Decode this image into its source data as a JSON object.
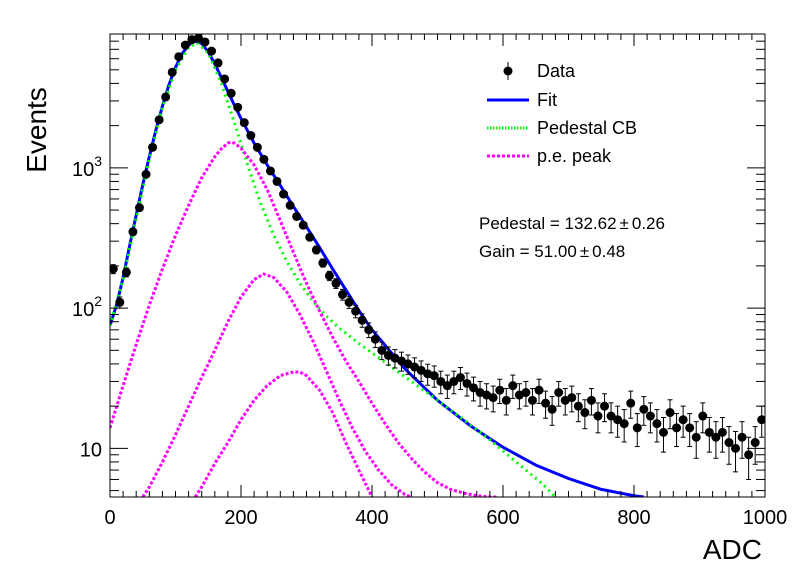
{
  "chart_data": {
    "type": "scatter",
    "title": "",
    "xlabel": "ADC",
    "ylabel": "Events",
    "xlim": [
      0,
      1000
    ],
    "ylim": [
      4.5,
      9000
    ],
    "yscale": "log",
    "grid": false,
    "legend_position": "top-right",
    "x_ticks": [
      0,
      200,
      400,
      600,
      800,
      1000
    ],
    "y_ticks": [
      {
        "value": 10,
        "label": "10"
      },
      {
        "value": 100,
        "label": "10",
        "exp": "2"
      },
      {
        "value": 1000,
        "label": "10",
        "exp": "3"
      }
    ],
    "legend": [
      {
        "label": "Data",
        "style": "marker",
        "color": "#000000"
      },
      {
        "label": "Fit",
        "style": "solid",
        "color": "#0000ff"
      },
      {
        "label": "Pedestal CB",
        "style": "dotted",
        "color": "#00ff00"
      },
      {
        "label": "p.e. peak",
        "style": "dashed",
        "color": "#ff00ff"
      }
    ],
    "annotations": [
      {
        "label": "Pedestal = 132.62",
        "pm": "±",
        "value": "0.26"
      },
      {
        "label": "Gain = 51.00",
        "pm": "±",
        "value": "0.48"
      }
    ],
    "series": [
      {
        "name": "Data",
        "kind": "points",
        "color": "#000000",
        "x": [
          5,
          15,
          25,
          35,
          45,
          55,
          65,
          75,
          85,
          95,
          105,
          115,
          125,
          135,
          145,
          155,
          165,
          175,
          185,
          195,
          205,
          215,
          225,
          235,
          245,
          255,
          265,
          275,
          285,
          295,
          305,
          315,
          325,
          335,
          345,
          355,
          365,
          375,
          385,
          395,
          405,
          415,
          425,
          435,
          445,
          455,
          465,
          475,
          485,
          495,
          505,
          515,
          525,
          535,
          545,
          555,
          565,
          575,
          585,
          595,
          605,
          615,
          625,
          635,
          645,
          655,
          665,
          675,
          685,
          695,
          705,
          715,
          725,
          735,
          745,
          755,
          765,
          775,
          785,
          795,
          805,
          815,
          825,
          835,
          845,
          855,
          865,
          875,
          885,
          895,
          905,
          915,
          925,
          935,
          945,
          955,
          965,
          975,
          985,
          995
        ],
        "y": [
          190,
          110,
          180,
          350,
          520,
          900,
          1400,
          2200,
          3200,
          4800,
          6200,
          7500,
          8200,
          8400,
          7900,
          6800,
          5600,
          4300,
          3400,
          2700,
          2100,
          1700,
          1400,
          1150,
          950,
          800,
          650,
          540,
          450,
          390,
          320,
          260,
          210,
          170,
          150,
          125,
          110,
          95,
          82,
          70,
          60,
          50,
          46,
          44,
          42,
          40,
          38,
          36,
          34,
          33,
          30,
          28,
          30,
          32,
          29,
          27,
          25,
          24,
          23,
          26,
          22,
          28,
          24,
          25,
          22,
          26,
          21,
          19,
          25,
          22,
          23,
          20,
          18,
          22,
          17,
          20,
          17,
          16,
          15,
          21,
          14,
          19,
          17,
          15,
          13,
          18,
          14,
          16,
          14,
          12,
          17,
          13,
          12,
          13,
          11,
          10,
          12,
          9,
          11,
          16
        ],
        "yerr": [
          14,
          10,
          13,
          19,
          23,
          30,
          37,
          47,
          57,
          69,
          79,
          87,
          91,
          92,
          89,
          82,
          75,
          66,
          58,
          52,
          46,
          41,
          37,
          34,
          31,
          28,
          25,
          23,
          21,
          20,
          18,
          16,
          14,
          13,
          12,
          11,
          10.5,
          9.7,
          9,
          8.4,
          7.7,
          7.1,
          6.8,
          6.6,
          6.5,
          6.3,
          6.2,
          6,
          5.8,
          5.7,
          5.5,
          5.3,
          5.5,
          5.7,
          5.4,
          5.2,
          5,
          4.9,
          4.8,
          5.1,
          4.7,
          5.3,
          4.9,
          5,
          4.7,
          5.1,
          4.6,
          4.4,
          5,
          4.7,
          4.8,
          4.5,
          4.2,
          4.7,
          4.1,
          4.5,
          4.1,
          4,
          3.9,
          4.6,
          3.7,
          4.4,
          4.1,
          3.9,
          3.6,
          4.2,
          3.7,
          4,
          3.7,
          3.5,
          4.1,
          3.6,
          3.5,
          3.6,
          3.3,
          3.2,
          3.5,
          3,
          3.3,
          4
        ]
      },
      {
        "name": "Fit",
        "kind": "line",
        "style": "solid",
        "color": "#0000ff",
        "x": [
          0,
          10,
          20,
          30,
          40,
          50,
          60,
          70,
          80,
          90,
          100,
          110,
          120,
          130,
          140,
          150,
          160,
          170,
          180,
          190,
          200,
          220,
          240,
          260,
          280,
          300,
          320,
          340,
          360,
          380,
          400,
          450,
          500,
          550,
          600,
          650,
          700,
          750,
          800,
          815
        ],
        "y": [
          75,
          105,
          165,
          280,
          460,
          760,
          1200,
          1850,
          2750,
          3900,
          5200,
          6500,
          7500,
          8000,
          7700,
          6700,
          5500,
          4400,
          3500,
          2800,
          2250,
          1500,
          1050,
          750,
          530,
          380,
          270,
          190,
          135,
          96,
          70,
          37,
          22,
          14.5,
          10.2,
          7.6,
          6.1,
          5.1,
          4.6,
          4.5
        ]
      },
      {
        "name": "Pedestal CB",
        "kind": "line",
        "style": "dotted",
        "color": "#00ff00",
        "x": [
          0,
          20,
          40,
          60,
          80,
          100,
          120,
          133,
          150,
          170,
          190,
          210,
          230,
          250,
          270,
          290,
          310,
          330,
          350,
          380,
          420,
          460,
          500,
          540,
          580,
          620,
          660,
          680
        ],
        "y": [
          75,
          160,
          440,
          1150,
          2700,
          5000,
          7200,
          7800,
          6600,
          4000,
          2100,
          1050,
          560,
          330,
          215,
          150,
          112,
          88,
          72,
          56,
          41,
          30,
          22,
          16,
          11.5,
          8,
          5.6,
          4.5
        ]
      },
      {
        "name": "p.e. peak 1",
        "kind": "line",
        "style": "dashed",
        "color": "#ff00ff",
        "x": [
          0,
          20,
          40,
          60,
          80,
          100,
          120,
          140,
          160,
          170,
          180,
          184,
          190,
          200,
          220,
          240,
          260,
          280,
          300,
          320,
          340,
          360,
          380,
          400,
          420,
          440,
          460,
          480,
          500,
          520,
          540,
          560,
          580,
          590
        ],
        "y": [
          14,
          28,
          55,
          105,
          190,
          330,
          540,
          850,
          1200,
          1370,
          1500,
          1520,
          1500,
          1380,
          1050,
          700,
          420,
          250,
          150,
          95,
          62,
          42,
          30,
          21,
          15,
          11,
          8.5,
          6.8,
          5.7,
          5.1,
          4.8,
          4.6,
          4.5,
          4.5
        ]
      },
      {
        "name": "p.e. peak 2",
        "kind": "line",
        "style": "dashed",
        "color": "#ff00ff",
        "x": [
          50,
          60,
          80,
          100,
          120,
          140,
          160,
          180,
          200,
          220,
          235,
          250,
          270,
          290,
          310,
          330,
          350,
          370,
          390,
          410,
          430,
          450,
          460
        ],
        "y": [
          4.5,
          5.3,
          8,
          12.5,
          20,
          32,
          50,
          80,
          120,
          160,
          175,
          165,
          130,
          90,
          58,
          36,
          22,
          14,
          9.5,
          7,
          5.5,
          4.7,
          4.5
        ]
      },
      {
        "name": "p.e. peak 3",
        "kind": "line",
        "style": "dashed",
        "color": "#ff00ff",
        "x": [
          130,
          140,
          160,
          180,
          200,
          220,
          240,
          260,
          280,
          290,
          300,
          320,
          340,
          360,
          380,
          400
        ],
        "y": [
          4.5,
          5.3,
          7.8,
          11,
          16,
          22,
          28,
          33,
          35,
          35,
          33,
          26,
          18,
          11,
          7,
          4.5
        ]
      }
    ]
  }
}
